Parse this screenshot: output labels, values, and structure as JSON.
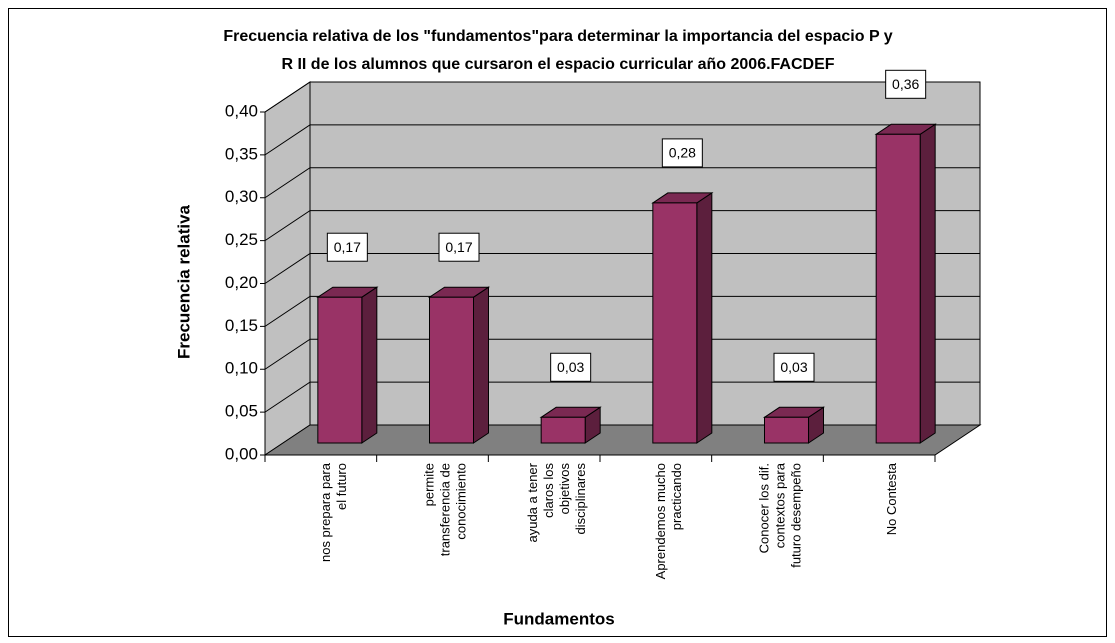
{
  "chart_data": {
    "type": "bar3d",
    "title": "Frecuencia relativa de los \"fundamentos\"para determinar la importancia del espacio P y",
    "subtitle": "R II de los alumnos que cursaron el espacio curricular año 2006.FACDEF",
    "x_label": "Fundamentos",
    "y_label": "Frecuencia relativa",
    "categories": [
      "nos prepara para el futuro",
      "permite transferencia de conocimiento",
      "ayuda a tener claros los objetivos disciplinares",
      "Aprendemos mucho practicando",
      "Conocer los dif. contextos para futuro desempeño",
      "No Contesta"
    ],
    "values": [
      0.17,
      0.17,
      0.03,
      0.28,
      0.03,
      0.36
    ],
    "value_labels": [
      "0,17",
      "0,17",
      "0,03",
      "0,28",
      "0,03",
      "0,36"
    ],
    "color": "#993366",
    "ylim": [
      0,
      0.4
    ],
    "yticks": [
      {
        "value": 0,
        "label": "0,00"
      },
      {
        "value": 0.05,
        "label": "0,05"
      },
      {
        "value": 0.1,
        "label": "0,10"
      },
      {
        "value": 0.15,
        "label": "0,15"
      },
      {
        "value": 0.2,
        "label": "0,20"
      },
      {
        "value": 0.25,
        "label": "0,25"
      },
      {
        "value": 0.3,
        "label": "0,30"
      },
      {
        "value": 0.35,
        "label": "0,35"
      },
      {
        "value": 0.4,
        "label": "0,40"
      }
    ],
    "grid": true
  }
}
